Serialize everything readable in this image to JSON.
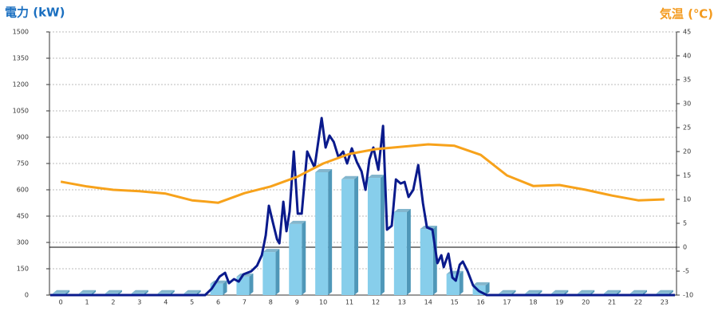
{
  "chart_data": {
    "type": "bar",
    "ylabel": "電力 (kW)",
    "y2label": "気温 (℃)",
    "ylabel_color": "#1a6fc0",
    "y2label_color": "#f39a1e",
    "categories": [
      "0",
      "1",
      "2",
      "3",
      "4",
      "5",
      "6",
      "7",
      "8",
      "9",
      "10",
      "11",
      "12",
      "13",
      "14",
      "15",
      "16",
      "17",
      "18",
      "19",
      "20",
      "21",
      "22",
      "23"
    ],
    "xlim": [
      -0.43,
      23.46
    ],
    "ylim": [
      0,
      1500
    ],
    "yticks": [
      0,
      150,
      300,
      450,
      600,
      750,
      900,
      1050,
      1200,
      1350,
      1500
    ],
    "y2lim": [
      -10,
      45
    ],
    "y2ticks": [
      -10,
      -5,
      0,
      5,
      10,
      15,
      20,
      25,
      30,
      35,
      40,
      45
    ],
    "grid": true,
    "reference_line": {
      "axis": "y2",
      "value": 0,
      "color": "#000000"
    },
    "series": [
      {
        "type": "bar",
        "color": "#87ceeb",
        "side_color": "#4f97b8",
        "values": [
          10,
          10,
          10,
          10,
          10,
          10,
          65,
          105,
          245,
          405,
          700,
          660,
          668,
          473,
          377,
          120,
          55,
          10,
          10,
          10,
          10,
          10,
          10,
          10
        ]
      },
      {
        "type": "line",
        "color": "#0a1a8c",
        "x": [
          -0.4,
          5.5,
          5.75,
          6.05,
          6.26,
          6.41,
          6.6,
          6.78,
          6.96,
          7.26,
          7.48,
          7.66,
          7.81,
          7.93,
          8.09,
          8.24,
          8.33,
          8.48,
          8.6,
          8.72,
          8.88,
          9.03,
          9.18,
          9.39,
          9.67,
          9.94,
          10.09,
          10.24,
          10.4,
          10.58,
          10.76,
          10.91,
          11.09,
          11.28,
          11.46,
          11.61,
          11.76,
          11.91,
          12.1,
          12.28,
          12.43,
          12.61,
          12.77,
          12.95,
          13.1,
          13.25,
          13.43,
          13.62,
          13.8,
          13.95,
          14.16,
          14.35,
          14.5,
          14.59,
          14.77,
          14.92,
          15.05,
          15.2,
          15.32,
          15.5,
          15.71,
          15.93,
          16.23,
          23.4
        ],
        "values": [
          0,
          0,
          36,
          105,
          127,
          68,
          91,
          77,
          118,
          136,
          168,
          227,
          341,
          509,
          409,
          318,
          295,
          532,
          364,
          477,
          818,
          464,
          464,
          818,
          727,
          1009,
          841,
          909,
          873,
          786,
          818,
          750,
          836,
          759,
          705,
          600,
          773,
          841,
          714,
          964,
          373,
          395,
          659,
          636,
          645,
          559,
          600,
          741,
          523,
          386,
          373,
          182,
          227,
          159,
          236,
          100,
          82,
          173,
          191,
          136,
          55,
          23,
          0,
          0
        ]
      },
      {
        "type": "line",
        "axis": "y2",
        "color": "#f7a21b",
        "values": [
          13.7,
          12.7,
          12,
          11.7,
          11.2,
          9.8,
          9.3,
          11.3,
          12.7,
          14.7,
          17.5,
          19.5,
          20.5,
          21,
          21.5,
          21.2,
          19.3,
          15,
          12.8,
          13,
          12,
          10.8,
          9.8,
          10
        ]
      }
    ]
  }
}
